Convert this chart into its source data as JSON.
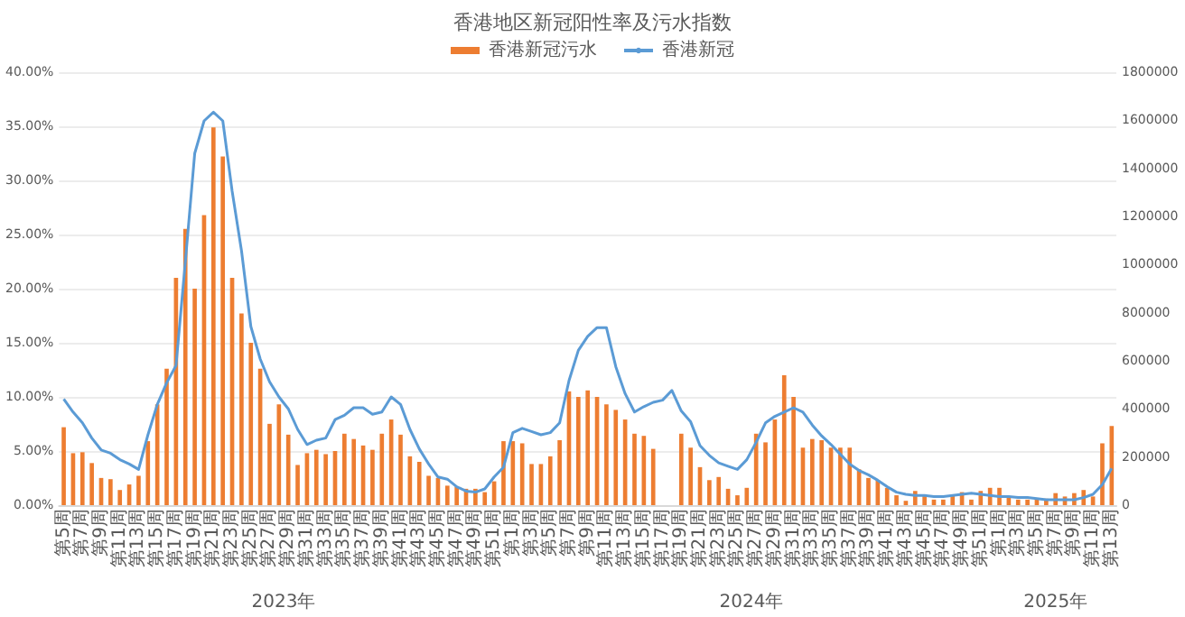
{
  "chart_data": {
    "type": "bar",
    "title": "香港地区新冠阳性率及污水指数",
    "categories": [
      "第5周",
      null,
      "第7周",
      null,
      "第9周",
      null,
      "第11周",
      null,
      "第13周",
      null,
      "第15周",
      null,
      "第17周",
      null,
      "第19周",
      null,
      "第21周",
      null,
      "第23周",
      null,
      "第25周",
      null,
      "第27周",
      null,
      "第29周",
      null,
      "第31周",
      null,
      "第33周",
      null,
      "第35周",
      null,
      "第37周",
      null,
      "第39周",
      null,
      "第41周",
      null,
      "第43周",
      null,
      "第45周",
      null,
      "第47周",
      null,
      "第49周",
      null,
      "第51周",
      null,
      "第1周",
      null,
      "第3周",
      null,
      "第5周",
      null,
      "第7周",
      null,
      "第9周",
      null,
      "第11周",
      null,
      "第13周",
      null,
      "第15周",
      null,
      "第17周",
      null,
      "第19周",
      null,
      "第21周",
      null,
      "第23周",
      null,
      "第25周",
      null,
      "第27周",
      null,
      "第29周",
      null,
      "第31周",
      null,
      "第33周",
      null,
      "第35周",
      null,
      "第37周",
      null,
      "第39周",
      null,
      "第41周",
      null,
      "第43周",
      null,
      "第45周",
      null,
      "第47周",
      null,
      "第49周",
      null,
      "第51周",
      null,
      "第1周",
      null,
      "第3周",
      null,
      "第5周",
      null,
      "第7周",
      null,
      "第9周",
      null,
      "第11周",
      null,
      "第13周"
    ],
    "series": [
      {
        "name": "香港新冠污水",
        "axis": "y2",
        "color": "#ed7d31",
        "values": [
          324000,
          216000,
          220000,
          175000,
          113000,
          108000,
          63000,
          86000,
          122000,
          266000,
          419000,
          567000,
          945000,
          1148000,
          900000,
          1206000,
          1570000,
          1449000,
          945000,
          797000,
          675000,
          567000,
          338000,
          419000,
          293000,
          167000,
          216000,
          230000,
          212000,
          225000,
          297000,
          275000,
          248000,
          230000,
          297000,
          356000,
          293000,
          203000,
          180000,
          122000,
          113000,
          81000,
          77000,
          68000,
          68000,
          54000,
          99000,
          266000,
          266000,
          257000,
          171000,
          171000,
          203000,
          270000,
          473000,
          450000,
          477000,
          450000,
          419000,
          396000,
          356000,
          297000,
          288000,
          234000,
          null,
          null,
          297000,
          239000,
          158000,
          104000,
          117000,
          68000,
          41000,
          72000,
          297000,
          261000,
          356000,
          540000,
          450000,
          239000,
          275000,
          270000,
          239000,
          239000,
          239000,
          149000,
          113000,
          104000,
          72000,
          41000,
          18000,
          59000,
          41000,
          23000,
          23000,
          41000,
          54000,
          23000,
          59000,
          72000,
          72000,
          32000,
          23000,
          23000,
          23000,
          27000,
          50000,
          36000,
          50000,
          63000,
          36000,
          257000,
          329000
        ]
      },
      {
        "name": "香港新冠",
        "type": "line",
        "axis": "y",
        "color": "#5b9bd5",
        "values": [
          9.8,
          8.6,
          7.6,
          6.2,
          5.1,
          4.8,
          4.2,
          3.8,
          3.3,
          6.5,
          9.3,
          11.3,
          12.9,
          22.5,
          32.5,
          35.5,
          36.3,
          35.5,
          29,
          23.5,
          16.5,
          13.5,
          11.4,
          10,
          8.9,
          7,
          5.6,
          6,
          6.2,
          7.9,
          8.3,
          9,
          9,
          8.4,
          8.6,
          10,
          9.3,
          7,
          5.2,
          3.8,
          2.6,
          2.4,
          1.7,
          1.3,
          1.2,
          1.5,
          2.6,
          3.5,
          6.7,
          7.1,
          6.8,
          6.5,
          6.7,
          7.6,
          11.5,
          14.3,
          15.6,
          16.4,
          16.4,
          12.8,
          10.3,
          8.6,
          9.1,
          9.5,
          9.7,
          10.6,
          8.7,
          7.7,
          5.5,
          4.6,
          3.9,
          3.6,
          3.3,
          4.2,
          5.8,
          7.6,
          8.2,
          8.6,
          9,
          8.6,
          7.4,
          6.4,
          5.6,
          4.7,
          3.8,
          3.2,
          2.8,
          2.3,
          1.7,
          1.2,
          1,
          0.9,
          0.9,
          0.8,
          0.8,
          0.9,
          1,
          1.1,
          1,
          0.9,
          0.8,
          0.8,
          0.7,
          0.7,
          0.6,
          0.5,
          0.5,
          0.5,
          0.5,
          0.7,
          1,
          1.9,
          3.4
        ]
      }
    ],
    "ylim": [
      0,
      40
    ],
    "yticks": [
      {
        "value": 0,
        "label": "0.00%"
      },
      {
        "value": 5,
        "label": "5.00%"
      },
      {
        "value": 10,
        "label": "10.00%"
      },
      {
        "value": 15,
        "label": "15.00%"
      },
      {
        "value": 20,
        "label": "20.00%"
      },
      {
        "value": 25,
        "label": "25.00%"
      },
      {
        "value": 30,
        "label": "30.00%"
      },
      {
        "value": 35,
        "label": "35.00%"
      },
      {
        "value": 40,
        "label": "40.00%"
      }
    ],
    "y2lim": [
      0,
      1800000
    ],
    "y2ticks": [
      0,
      200000,
      400000,
      600000,
      800000,
      1000000,
      1200000,
      1400000,
      1600000,
      1800000
    ],
    "grid": "y",
    "legend": "top",
    "marker": "none",
    "annotations": [
      "2023年",
      "2024年",
      "2025年"
    ]
  }
}
